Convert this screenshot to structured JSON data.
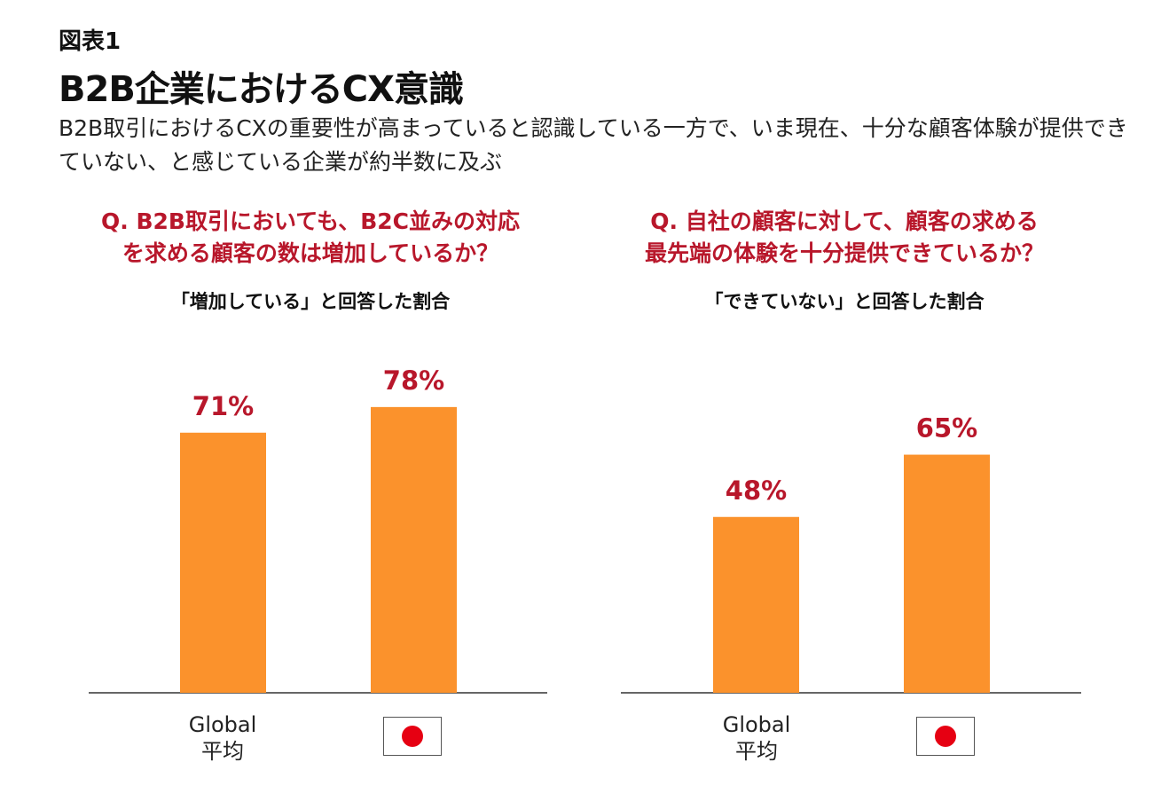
{
  "figure_label": "図表1",
  "title": "B2B企業におけるCX意識",
  "subtitle": "B2B取引におけるCXの重要性が高まっていると認識している一方で、いま現在、十分な顧客体験が提供できていない、と感じている企業が約半数に及ぶ",
  "colors": {
    "bar": "#fb922c",
    "value_label": "#b8172b",
    "question": "#b8172b",
    "flag_circle": "#e60012"
  },
  "chart_data": [
    {
      "type": "bar",
      "title": "Q. B2B取引においても、B2C並みの対応を求める顧客の数は増加しているか？",
      "subtitle": "「増加している」と回答した割合",
      "categories": [
        "Global平均",
        "Japan"
      ],
      "category_labels": {
        "global": "Global",
        "global_sub": "平均",
        "japan_icon": "japan-flag-icon"
      },
      "values": [
        71,
        78
      ],
      "value_labels": [
        "71%",
        "78%"
      ],
      "ylim": [
        0,
        100
      ],
      "grid": false
    },
    {
      "type": "bar",
      "title": "Q. 自社の顧客に対して、顧客の求める最先端の体験を十分提供できているか？",
      "subtitle": "「できていない」と回答した割合",
      "categories": [
        "Global平均",
        "Japan"
      ],
      "category_labels": {
        "global": "Global",
        "global_sub": "平均",
        "japan_icon": "japan-flag-icon"
      },
      "values": [
        48,
        65
      ],
      "value_labels": [
        "48%",
        "65%"
      ],
      "ylim": [
        0,
        100
      ],
      "grid": false
    }
  ],
  "q1_line1": "Q. B2B取引においても、B2C並みの対応",
  "q1_line2": "を求める顧客の数は増加しているか？",
  "q2_line1": "Q. 自社の顧客に対して、顧客の求める",
  "q2_line2": "最先端の体験を十分提供できているか？"
}
